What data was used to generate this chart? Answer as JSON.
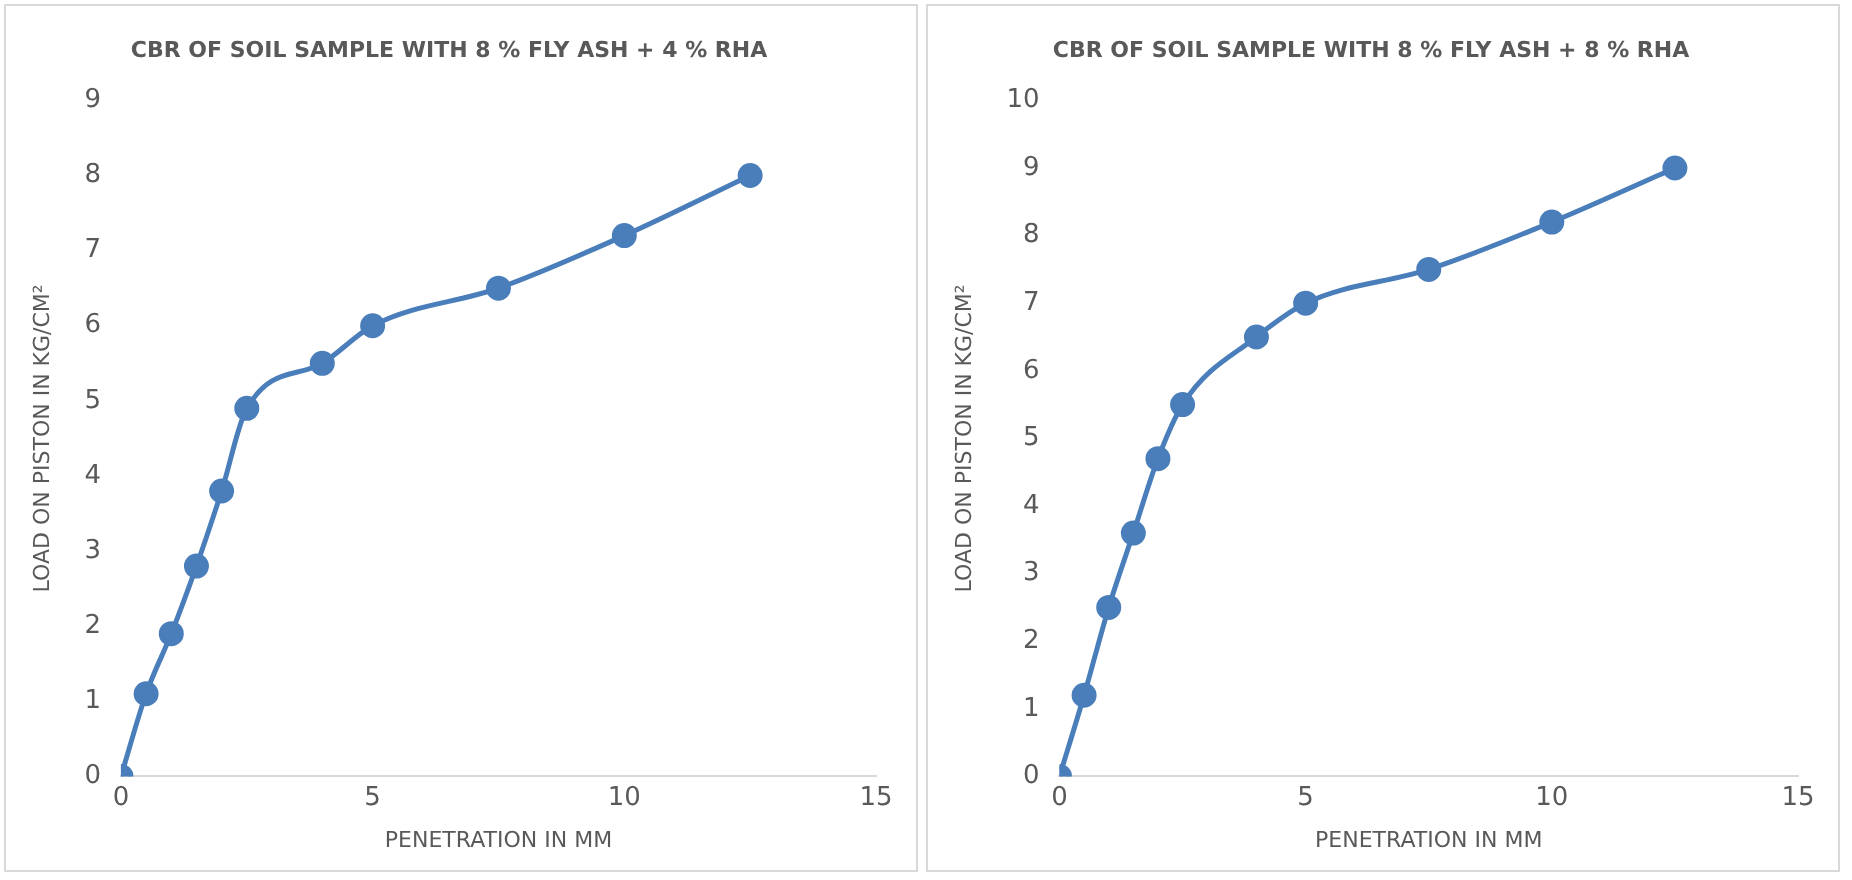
{
  "chart_data": [
    {
      "type": "line",
      "title": "CBR OF SOIL SAMPLE WITH 8 % FLY ASH + 4 % RHA",
      "xlabel": "PENETRATION IN MM",
      "ylabel": "LOAD ON PISTON IN KG/CM²",
      "x": [
        0,
        0.5,
        1,
        1.5,
        2,
        2.5,
        4,
        5,
        7.5,
        10,
        12.5
      ],
      "series": [
        {
          "color": "#4a7ebb",
          "values": [
            0,
            1.1,
            1.9,
            2.8,
            3.8,
            4.9,
            5.5,
            6.0,
            6.5,
            7.2,
            8.0
          ]
        }
      ],
      "xlim": [
        0,
        15
      ],
      "xticks": [
        0,
        5,
        10,
        15
      ],
      "ylim": [
        0,
        9
      ],
      "yticks": [
        0,
        1,
        2,
        3,
        4,
        5,
        6,
        7,
        8,
        9
      ],
      "marker": "circle"
    },
    {
      "type": "line",
      "title": "CBR OF SOIL SAMPLE WITH 8 % FLY ASH + 8 % RHA",
      "xlabel": "PENETRATION IN MM",
      "ylabel": "LOAD ON PISTON IN KG/CM²",
      "x": [
        0,
        0.5,
        1,
        1.5,
        2,
        2.5,
        4,
        5,
        7.5,
        10,
        12.5
      ],
      "series": [
        {
          "color": "#4a7ebb",
          "values": [
            0,
            1.2,
            2.5,
            3.6,
            4.7,
            5.5,
            6.5,
            7.0,
            7.5,
            8.2,
            9.0
          ]
        }
      ],
      "xlim": [
        0,
        15
      ],
      "xticks": [
        0,
        5,
        10,
        15
      ],
      "ylim": [
        0,
        10
      ],
      "yticks": [
        0,
        1,
        2,
        3,
        4,
        5,
        6,
        7,
        8,
        9,
        10
      ],
      "marker": "circle"
    }
  ]
}
